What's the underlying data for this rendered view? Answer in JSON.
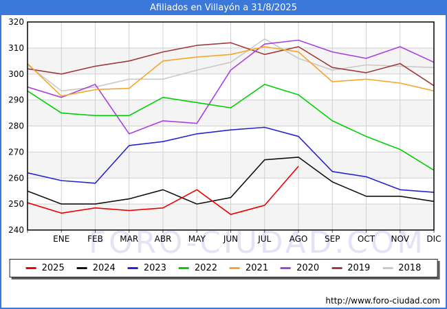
{
  "window": {
    "title": "Afiliados en Villayón a 31/8/2025"
  },
  "watermark": "FORO-CIUDAD.COM",
  "footer": {
    "url": "http://www.foro-ciudad.com"
  },
  "chart_data": {
    "type": "line",
    "title": "Afiliados en Villayón a 31/8/2025",
    "xlabel": "",
    "ylabel": "",
    "x_tick_labels": [
      "ENE",
      "FEB",
      "MAR",
      "ABR",
      "MAY",
      "JUN",
      "JUL",
      "AGO",
      "SEP",
      "OCT",
      "NOV",
      "DIC"
    ],
    "y_ticks": [
      240,
      250,
      260,
      270,
      280,
      290,
      300,
      310,
      320
    ],
    "ylim": [
      240,
      320
    ],
    "grid": true,
    "alternating_bands": true,
    "lead_in_point_on_axis": true,
    "legend_position": "bottom",
    "axis_text_color": "#000000",
    "grid_color": "#d0d0d0",
    "band_color": "#f4f4f4",
    "watermark_color": "#e3e3f6",
    "series": [
      {
        "name": "2025",
        "color": "#ee0000",
        "values": [
          250.5,
          246.5,
          248.5,
          247.5,
          248.5,
          255.5,
          246,
          249.5,
          264.5
        ]
      },
      {
        "name": "2024",
        "color": "#111111",
        "values": [
          255,
          250,
          250,
          252,
          255.5,
          250,
          252.5,
          267,
          268,
          258.5,
          253,
          253,
          251
        ]
      },
      {
        "name": "2023",
        "color": "#2424cf",
        "values": [
          262,
          259,
          258,
          272.5,
          274,
          277,
          278.5,
          279.5,
          276,
          262.5,
          260.5,
          255.5,
          254.5
        ]
      },
      {
        "name": "2022",
        "color": "#00d000",
        "values": [
          293.5,
          285,
          284,
          284,
          291,
          289,
          287,
          296,
          292,
          282,
          276,
          271,
          263
        ]
      },
      {
        "name": "2021",
        "color": "#f4a62a",
        "values": [
          304,
          291.5,
          294,
          294.5,
          305,
          306.5,
          307.5,
          310.5,
          308.5,
          297,
          298,
          296.5,
          293.5
        ]
      },
      {
        "name": "2020",
        "color": "#aa3fe0",
        "values": [
          295,
          291,
          296,
          277,
          282,
          281,
          301.5,
          311.5,
          313,
          308.5,
          306,
          310.5,
          304.5
        ]
      },
      {
        "name": "2019",
        "color": "#a03a3a",
        "values": [
          302,
          300,
          303,
          305,
          308.5,
          311,
          312,
          307.5,
          310.5,
          302.5,
          300.5,
          304,
          295.5
        ]
      },
      {
        "name": "2018",
        "color": "#c9c9c9",
        "values": [
          303.5,
          293.5,
          295,
          298,
          298,
          301.5,
          304.5,
          313.5,
          306,
          301.5,
          303.5,
          303,
          302.5
        ]
      }
    ]
  }
}
